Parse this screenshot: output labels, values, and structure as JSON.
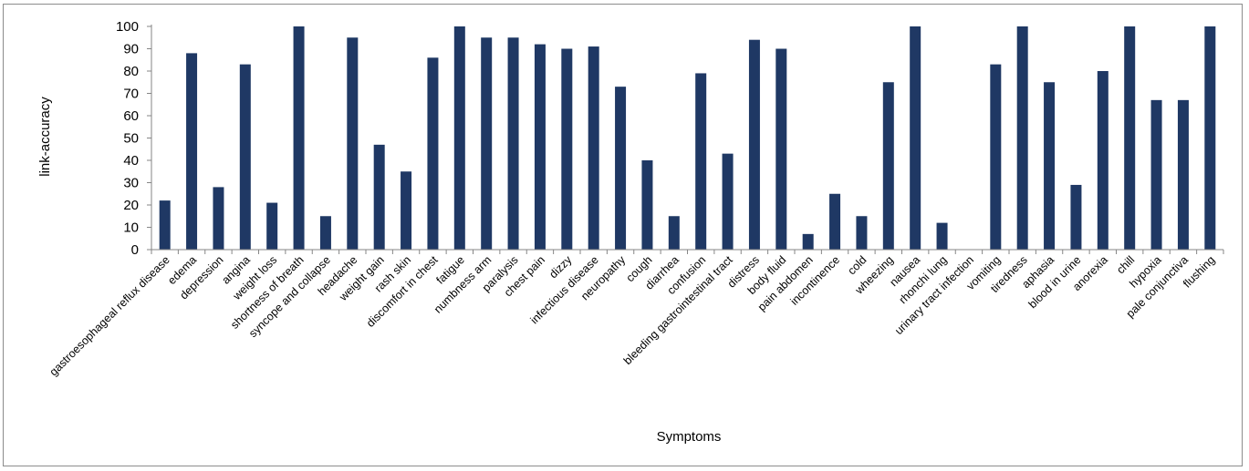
{
  "chart_data": {
    "type": "bar",
    "title": "",
    "xlabel": "Symptoms",
    "ylabel": "link-accuracy",
    "ylim": [
      0,
      100
    ],
    "yticks": [
      "0",
      "10",
      "20",
      "30",
      "40",
      "50",
      "60",
      "70",
      "80",
      "90",
      "100"
    ],
    "grid": false,
    "legend": "none",
    "bar_color": "#1f3864",
    "categories": [
      "gastroesophageal reflux disease",
      "edema",
      "depression",
      "angina",
      "weight loss",
      "shortness of breath",
      "syncope and collapse",
      "headache",
      "weight gain",
      "rash skin",
      "discomfort in chest",
      "fatigue",
      "numbness arm",
      "paralysis",
      "chest pain",
      "dizzy",
      "infectious disease",
      "neuropathy",
      "cough",
      "diarrhea",
      "confusion",
      "bleeding gastrointestinal tract",
      "distress",
      "body fluid",
      "pain abdomen",
      "incontinence",
      "cold",
      "wheezing",
      "nausea",
      "rhonchi lung",
      "urinary tract infection",
      "vomiting",
      "tiredness",
      "aphasia",
      "blood in urine",
      "anorexia",
      "chill",
      "hypoxia",
      "pale conjunctiva",
      "flushing"
    ],
    "values": [
      22,
      88,
      28,
      83,
      21,
      100,
      15,
      95,
      47,
      35,
      86,
      100,
      95,
      95,
      92,
      90,
      91,
      73,
      40,
      15,
      79,
      43,
      94,
      90,
      7,
      25,
      15,
      75,
      100,
      12,
      0,
      83,
      100,
      75,
      29,
      80,
      100,
      67,
      67,
      100
    ]
  }
}
